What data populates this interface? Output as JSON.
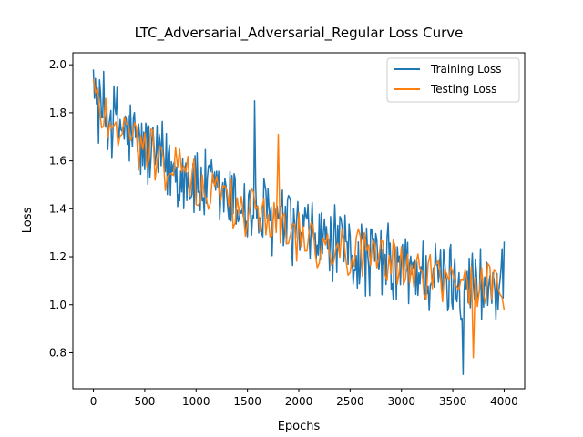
{
  "chart_data": {
    "type": "line",
    "title": "LTC_Adversarial_Adversarial_Regular Loss Curve",
    "xlabel": "Epochs",
    "ylabel": "Loss",
    "xlim": [
      -200,
      4200
    ],
    "ylim": [
      0.65,
      2.05
    ],
    "xticks": [
      0,
      500,
      1000,
      1500,
      2000,
      2500,
      3000,
      3500,
      4000
    ],
    "yticks": [
      0.8,
      1.0,
      1.2,
      1.4,
      1.6,
      1.8,
      2.0
    ],
    "ytick_labels": [
      "0.8",
      "1.0",
      "1.2",
      "1.4",
      "1.6",
      "1.8",
      "2.0"
    ],
    "grid": false,
    "legend_position": "upper right",
    "series": [
      {
        "name": "Training Loss",
        "color": "#1f77b4",
        "x_start": 0,
        "x_step": 10,
        "trend_x": [
          0,
          500,
          1000,
          1500,
          2000,
          2500,
          3000,
          3500,
          4000
        ],
        "trend_y": [
          1.85,
          1.65,
          1.5,
          1.4,
          1.3,
          1.22,
          1.15,
          1.1,
          1.08
        ],
        "noise_amplitude": 0.19,
        "extremes": [
          {
            "x": 0,
            "y": 1.98
          },
          {
            "x": 1570,
            "y": 1.85
          },
          {
            "x": 3600,
            "y": 0.71
          }
        ]
      },
      {
        "name": "Testing Loss",
        "color": "#ff7f0e",
        "x_start": 0,
        "x_step": 20,
        "trend_x": [
          0,
          500,
          1000,
          1500,
          2000,
          2500,
          3000,
          3500,
          4000
        ],
        "trend_y": [
          1.85,
          1.65,
          1.5,
          1.4,
          1.3,
          1.22,
          1.15,
          1.1,
          1.08
        ],
        "noise_amplitude": 0.14,
        "extremes": [
          {
            "x": 0,
            "y": 1.94
          },
          {
            "x": 1800,
            "y": 1.71
          },
          {
            "x": 3700,
            "y": 0.78
          }
        ]
      }
    ]
  }
}
